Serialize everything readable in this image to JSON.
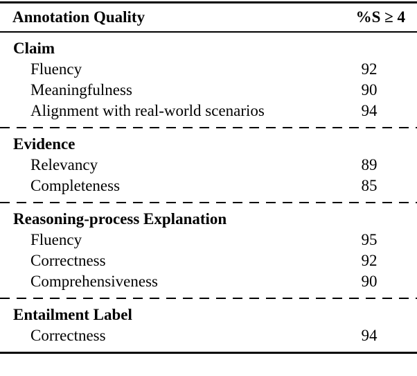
{
  "table": {
    "header": {
      "label": "Annotation Quality",
      "value": "%S ≥ 4"
    },
    "sections": [
      {
        "title": "Claim",
        "rows": [
          {
            "label": "Fluency",
            "value": "92"
          },
          {
            "label": "Meaningfulness",
            "value": "90"
          },
          {
            "label": "Alignment with real-world scenarios",
            "value": "94"
          }
        ]
      },
      {
        "title": "Evidence",
        "rows": [
          {
            "label": "Relevancy",
            "value": "89"
          },
          {
            "label": "Completeness",
            "value": "85"
          }
        ]
      },
      {
        "title": "Reasoning-process Explanation",
        "rows": [
          {
            "label": "Fluency",
            "value": "95"
          },
          {
            "label": "Correctness",
            "value": "92"
          },
          {
            "label": "Comprehensiveness",
            "value": "90"
          }
        ]
      },
      {
        "title": "Entailment Label",
        "rows": [
          {
            "label": "Correctness",
            "value": "94"
          }
        ]
      }
    ]
  },
  "colors": {
    "text": "#000000",
    "background": "#ffffff",
    "rule": "#000000"
  }
}
